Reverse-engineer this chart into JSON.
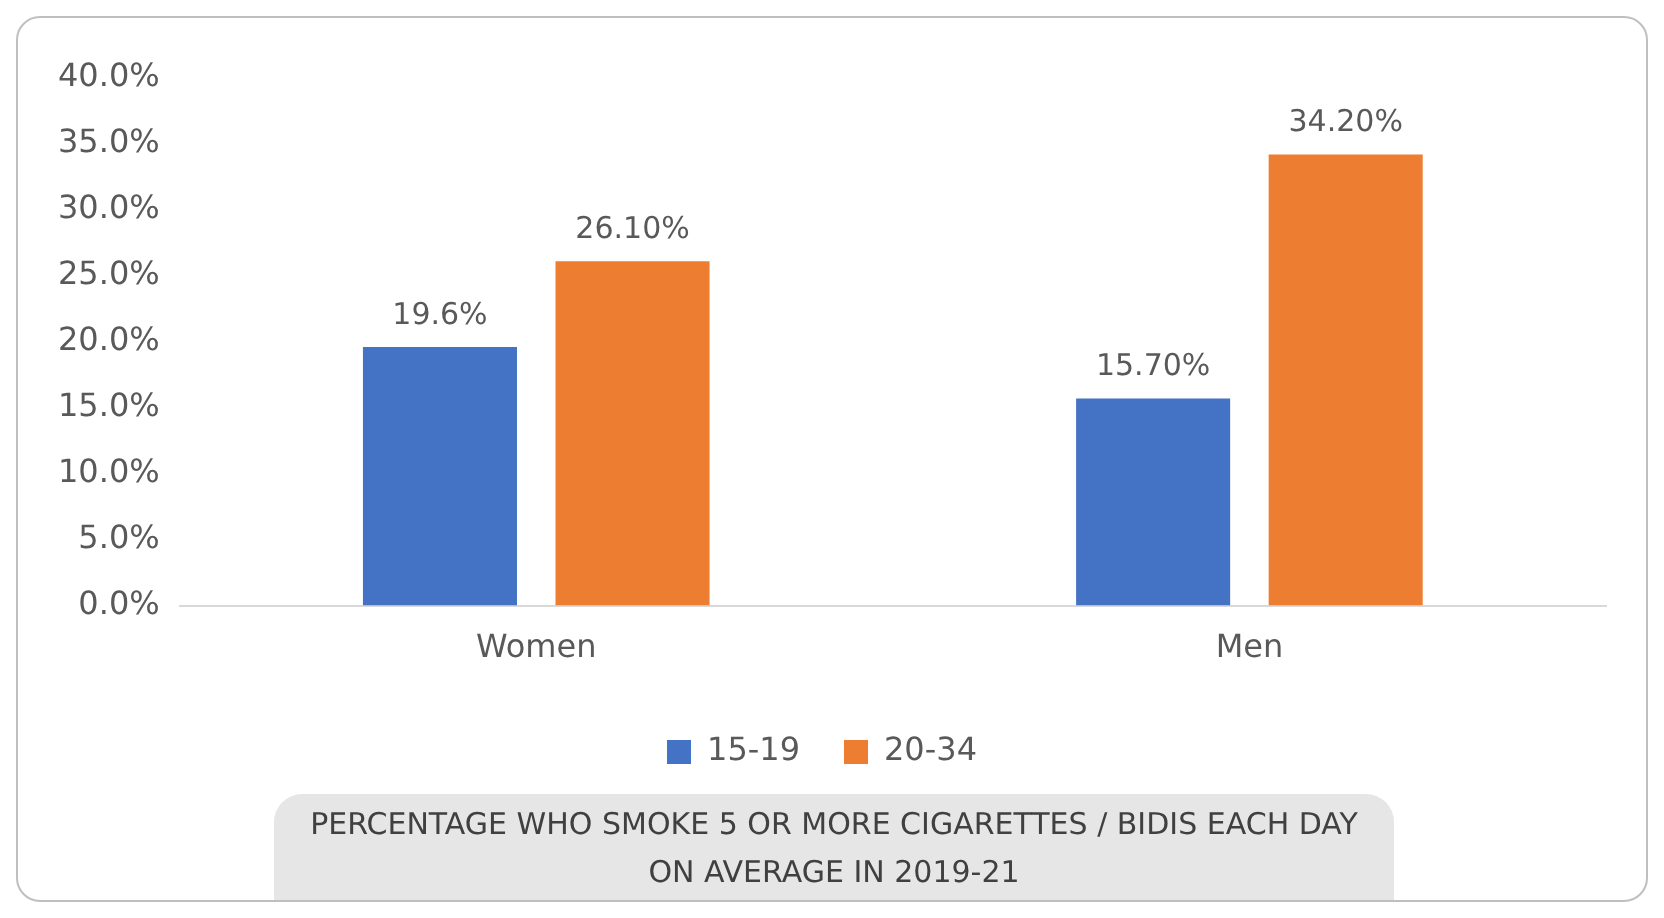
{
  "chart_data": {
    "type": "bar",
    "title": "PERCENTAGE WHO SMOKE 5 OR MORE CIGARETTES / BIDIS EACH DAY ON AVERAGE IN 2019-21",
    "categories": [
      "Women",
      "Men"
    ],
    "series": [
      {
        "name": "15-19",
        "color": "#4472c4",
        "values": [
          19.6,
          15.7
        ],
        "value_labels": [
          "19.6%",
          "15.70%"
        ]
      },
      {
        "name": "20-34",
        "color": "#ed7d31",
        "values": [
          26.1,
          34.2
        ],
        "value_labels": [
          "26.10%",
          "34.20%"
        ]
      }
    ],
    "ylim": [
      0,
      40
    ],
    "yticks": [
      {
        "value": 0,
        "label": "0.0%"
      },
      {
        "value": 5,
        "label": "5.0%"
      },
      {
        "value": 10,
        "label": "10.0%"
      },
      {
        "value": 15,
        "label": "15.0%"
      },
      {
        "value": 20,
        "label": "20.0%"
      },
      {
        "value": 25,
        "label": "25.0%"
      },
      {
        "value": 30,
        "label": "30.0%"
      },
      {
        "value": 35,
        "label": "35.0%"
      },
      {
        "value": 40,
        "label": "40.0%"
      }
    ],
    "grid": false,
    "legend": "bottom"
  }
}
